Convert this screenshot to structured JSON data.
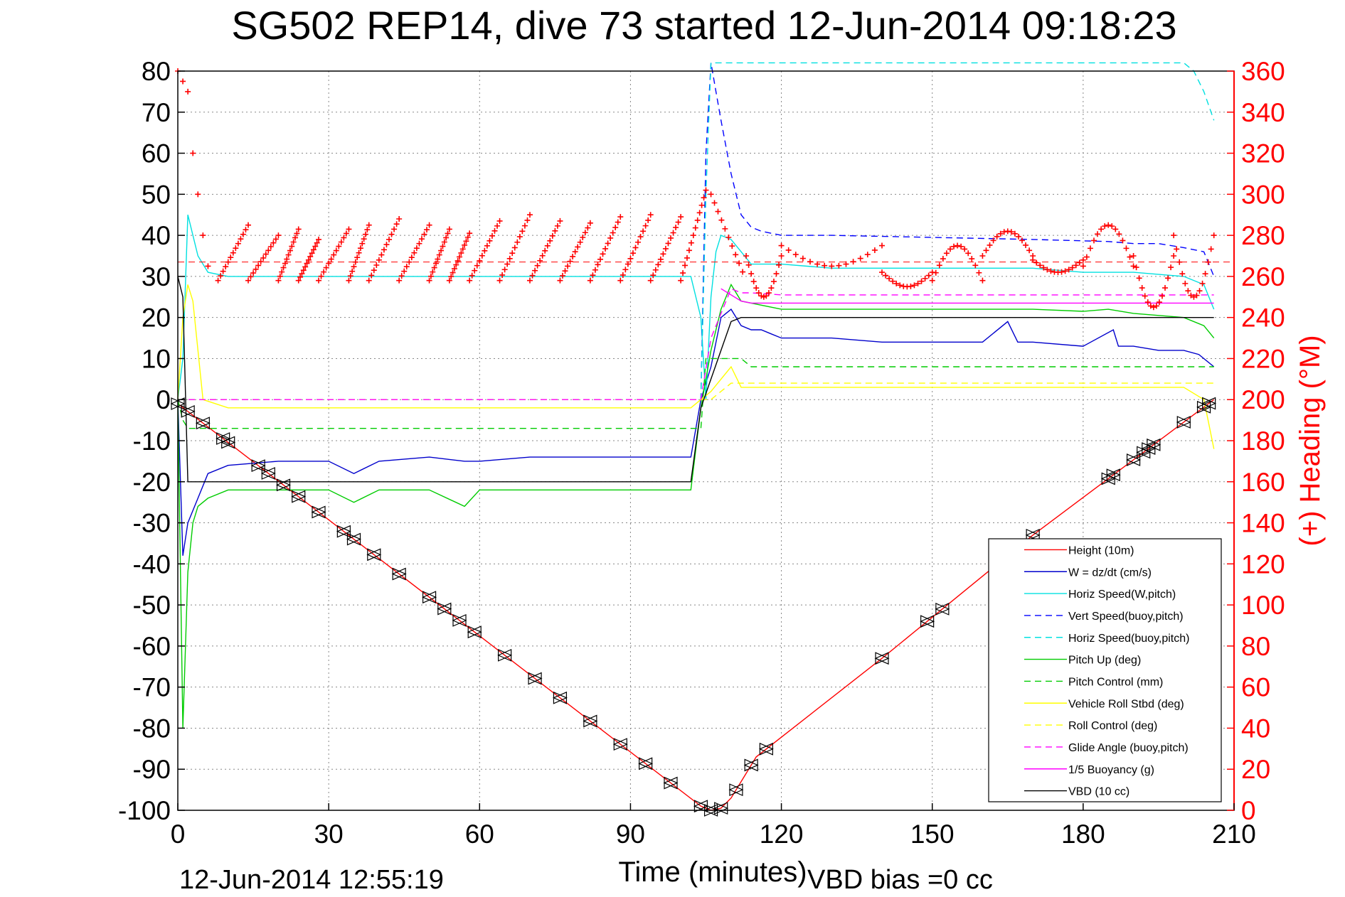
{
  "chart_data": {
    "type": "line",
    "title": "SG502 REP14, dive 73 started 12-Jun-2014 09:18:23",
    "xlabel": "Time (minutes)",
    "ylabel": "",
    "y2label": "(+) Heading (°M)",
    "xlim": [
      0,
      210
    ],
    "ylim": [
      -100,
      80
    ],
    "y2lim": [
      0,
      360
    ],
    "xticks": [
      0,
      30,
      60,
      90,
      120,
      150,
      180,
      210
    ],
    "yticks": [
      80,
      70,
      60,
      50,
      40,
      30,
      20,
      10,
      0,
      -10,
      -20,
      -30,
      -40,
      -50,
      -60,
      -70,
      -80,
      -90,
      -100
    ],
    "y2ticks": [
      360,
      340,
      320,
      300,
      280,
      260,
      240,
      220,
      200,
      180,
      160,
      140,
      120,
      100,
      80,
      60,
      40,
      20,
      0
    ],
    "grid": true,
    "legend_position": "bottom-right",
    "footer_left": "12-Jun-2014 12:55:19",
    "footer_right": "VBD bias =0 cc",
    "series": [
      {
        "name": "Height (10m)",
        "color": "#ff0000",
        "style": "solid",
        "x": [
          0,
          104,
          106,
          108,
          110,
          112,
          115,
          140,
          150,
          170,
          206
        ],
        "y": [
          -1,
          -99,
          -100,
          -99.5,
          -97,
          -93,
          -87,
          -63,
          -53,
          -33,
          0
        ]
      },
      {
        "name": "W = dz/dt (cm/s)",
        "color": "#0000cc",
        "style": "solid",
        "x": [
          0,
          1,
          2,
          4,
          6,
          10,
          20,
          30,
          35,
          40,
          50,
          57,
          60,
          70,
          80,
          90,
          102,
          104,
          106,
          108,
          110,
          112,
          114,
          116,
          118,
          120,
          130,
          140,
          160,
          165,
          167,
          170,
          180,
          186,
          187,
          190,
          195,
          200,
          203,
          206
        ],
        "y": [
          0,
          -38,
          -30,
          -24,
          -18,
          -16,
          -15,
          -15,
          -18,
          -15,
          -14,
          -15,
          -15,
          -14,
          -14,
          -14,
          -14,
          0,
          8,
          20,
          22,
          18,
          17,
          17,
          16,
          15,
          15,
          14,
          14,
          19,
          14,
          14,
          13,
          17,
          13,
          13,
          12,
          12,
          11,
          8
        ]
      },
      {
        "name": "Horiz Speed(W,pitch)",
        "color": "#00e0e0",
        "style": "solid",
        "x": [
          0,
          1,
          2,
          3,
          4,
          6,
          10,
          20,
          30,
          40,
          50,
          60,
          70,
          80,
          90,
          102,
          104,
          105,
          106,
          107,
          108,
          110,
          112,
          114,
          116,
          120,
          130,
          140,
          150,
          160,
          170,
          180,
          190,
          200,
          204,
          206
        ],
        "y": [
          0,
          10,
          45,
          40,
          35,
          31,
          30,
          30,
          30,
          30,
          30,
          30,
          30,
          30,
          30,
          30,
          20,
          0,
          25,
          36,
          40,
          39,
          36,
          33,
          33,
          33,
          32,
          32,
          32,
          32,
          32,
          31,
          31,
          30,
          28,
          22
        ]
      },
      {
        "name": "Vert Speed(buoy,pitch)",
        "color": "#0000ff",
        "style": "dashed",
        "x": [
          104,
          105,
          106,
          107,
          108,
          110,
          112,
          114,
          116,
          118,
          120,
          130,
          150,
          170,
          185,
          190,
          195,
          200,
          204,
          206
        ],
        "y": [
          0,
          60,
          82,
          75,
          68,
          55,
          45,
          42,
          41,
          40.5,
          40,
          40,
          39.5,
          39,
          38.5,
          38,
          38,
          37,
          36,
          30
        ]
      },
      {
        "name": "Horiz Speed(buoy,pitch)",
        "color": "#00e0e0",
        "style": "dashed",
        "x": [
          104,
          105,
          106,
          107,
          200,
          202,
          204,
          206
        ],
        "y": [
          0,
          50,
          82,
          82,
          82,
          80,
          75,
          68
        ]
      },
      {
        "name": "Pitch Up (deg)",
        "color": "#00cc00",
        "style": "solid",
        "x": [
          0,
          1,
          2,
          3,
          4,
          6,
          10,
          20,
          30,
          35,
          40,
          50,
          57,
          60,
          70,
          80,
          90,
          102,
          104,
          106,
          108,
          110,
          112,
          116,
          120,
          140,
          160,
          170,
          180,
          185,
          190,
          200,
          204,
          206
        ],
        "y": [
          0,
          -80,
          -42,
          -30,
          -26,
          -24,
          -22,
          -22,
          -22,
          -25,
          -22,
          -22,
          -26,
          -22,
          -22,
          -22,
          -22,
          -22,
          -2,
          12,
          22,
          28,
          24,
          23,
          22,
          22,
          22,
          22,
          21.5,
          22,
          21,
          20,
          18,
          15
        ]
      },
      {
        "name": "Pitch Control (mm)",
        "color": "#00cc00",
        "style": "dashed",
        "x": [
          0,
          1,
          2,
          104,
          105,
          112,
          114,
          150,
          206
        ],
        "y": [
          0,
          -5,
          -7,
          -7,
          10,
          10,
          8,
          8,
          8
        ]
      },
      {
        "name": "Vehicle Roll Stbd (deg)",
        "color": "#ffff00",
        "style": "solid",
        "x": [
          0,
          1,
          2,
          3,
          5,
          10,
          20,
          30,
          40,
          50,
          60,
          70,
          80,
          90,
          102,
          104,
          106,
          110,
          112,
          116,
          120,
          140,
          160,
          180,
          200,
          204,
          206
        ],
        "y": [
          0,
          20,
          28,
          24,
          0,
          -2,
          -2,
          -2,
          -2,
          -2,
          -2,
          -2,
          -2,
          -2,
          -2,
          0,
          2,
          8,
          3,
          3,
          3,
          3,
          3,
          3,
          3,
          0,
          -12
        ]
      },
      {
        "name": "Roll Control (deg)",
        "color": "#ffff00",
        "style": "dashed",
        "x": [
          0,
          2,
          106,
          110,
          206
        ],
        "y": [
          0,
          0,
          0,
          4,
          4
        ]
      },
      {
        "name": "Glide Angle (buoy,pitch)",
        "color": "#ff00ff",
        "style": "dashed",
        "x": [
          0,
          104,
          106,
          110,
          112,
          114,
          120,
          206
        ],
        "y": [
          0,
          0,
          15,
          27,
          26,
          26,
          25.5,
          25.5
        ]
      },
      {
        "name": "1/5 Buoyancy (g)",
        "color": "#ff00ff",
        "style": "solid",
        "x": [
          108,
          112,
          114,
          150,
          206
        ],
        "y": [
          27,
          24,
          23.5,
          23.5,
          23.5
        ]
      },
      {
        "name": "VBD (10 cc)",
        "color": "#000000",
        "style": "solid",
        "x": [
          0,
          1,
          2,
          102,
          104,
          110,
          112,
          206
        ],
        "y": [
          30,
          25,
          -20,
          -20,
          -2,
          19,
          20,
          20
        ]
      }
    ]
  }
}
